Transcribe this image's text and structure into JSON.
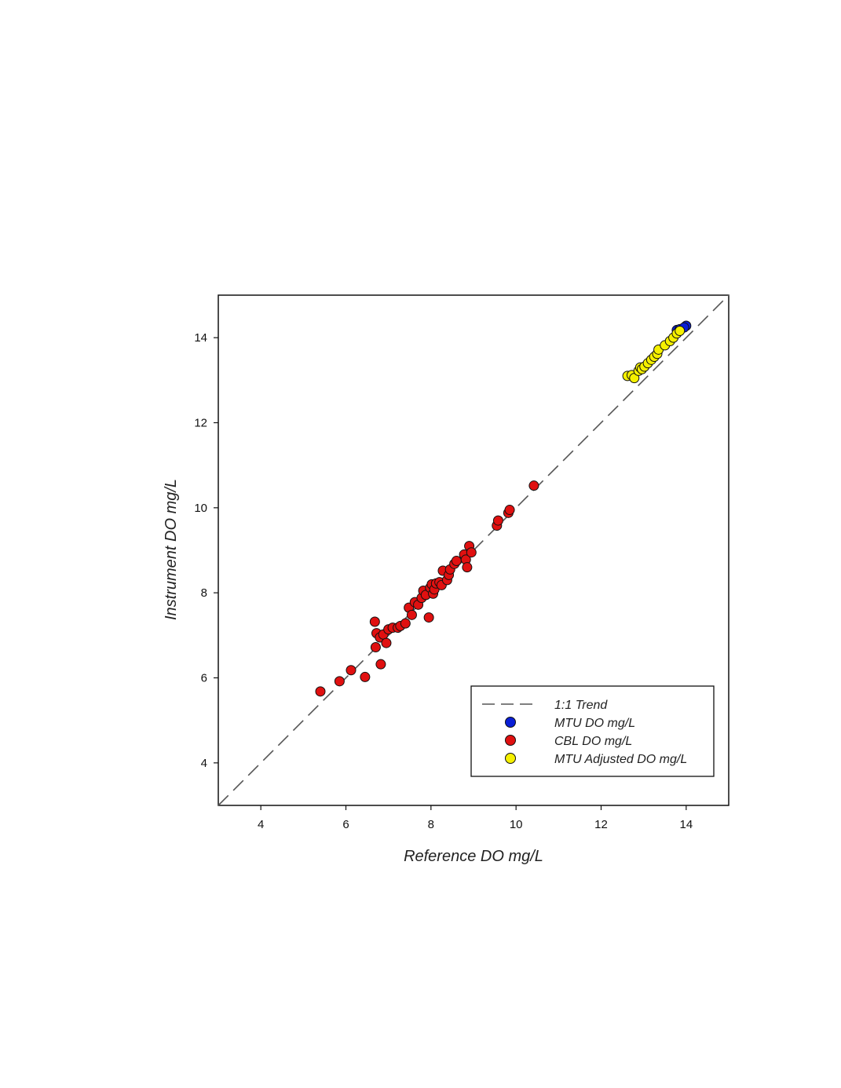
{
  "chart_data": {
    "type": "scatter",
    "title": "",
    "xlabel": "Reference DO mg/L",
    "ylabel": "Instrument DO mg/L",
    "xlim": [
      3,
      15
    ],
    "ylim": [
      3,
      15
    ],
    "xticks": [
      4,
      6,
      8,
      10,
      12,
      14
    ],
    "yticks": [
      4,
      6,
      8,
      10,
      12,
      14
    ],
    "grid": false,
    "legend_position": "bottom-right",
    "reference_line": {
      "name": "1:1 Trend",
      "slope": 1,
      "intercept": 0,
      "style": "dashed",
      "color": "#555555"
    },
    "series": [
      {
        "name": "MTU DO mg/L",
        "color": "#0a1fd6",
        "points": [
          [
            13.78,
            14.18
          ],
          [
            13.85,
            14.2
          ],
          [
            14.0,
            14.28
          ],
          [
            13.95,
            14.24
          ]
        ]
      },
      {
        "name": "CBL DO mg/L",
        "color": "#e01010",
        "points": [
          [
            5.4,
            5.68
          ],
          [
            5.85,
            5.92
          ],
          [
            6.12,
            6.18
          ],
          [
            6.45,
            6.02
          ],
          [
            6.68,
            7.32
          ],
          [
            6.7,
            6.72
          ],
          [
            6.72,
            7.05
          ],
          [
            6.8,
            6.95
          ],
          [
            6.82,
            6.32
          ],
          [
            6.88,
            7.02
          ],
          [
            6.95,
            6.82
          ],
          [
            7.0,
            7.14
          ],
          [
            7.1,
            7.18
          ],
          [
            7.22,
            7.18
          ],
          [
            7.28,
            7.22
          ],
          [
            7.4,
            7.28
          ],
          [
            7.48,
            7.65
          ],
          [
            7.55,
            7.48
          ],
          [
            7.62,
            7.78
          ],
          [
            7.7,
            7.72
          ],
          [
            7.78,
            7.88
          ],
          [
            7.82,
            8.05
          ],
          [
            7.88,
            7.95
          ],
          [
            7.95,
            7.42
          ],
          [
            7.98,
            8.12
          ],
          [
            8.02,
            8.2
          ],
          [
            8.05,
            7.98
          ],
          [
            8.08,
            8.08
          ],
          [
            8.12,
            8.22
          ],
          [
            8.2,
            8.25
          ],
          [
            8.25,
            8.18
          ],
          [
            8.28,
            8.52
          ],
          [
            8.38,
            8.3
          ],
          [
            8.42,
            8.42
          ],
          [
            8.45,
            8.55
          ],
          [
            8.55,
            8.68
          ],
          [
            8.6,
            8.75
          ],
          [
            8.78,
            8.9
          ],
          [
            8.82,
            8.78
          ],
          [
            8.85,
            8.6
          ],
          [
            8.9,
            9.1
          ],
          [
            8.95,
            8.95
          ],
          [
            9.55,
            9.58
          ],
          [
            9.58,
            9.7
          ],
          [
            9.82,
            9.88
          ],
          [
            9.85,
            9.95
          ],
          [
            10.42,
            10.52
          ]
        ]
      },
      {
        "name": "MTU Adjusted DO mg/L",
        "color": "#f5f000",
        "points": [
          [
            12.62,
            13.1
          ],
          [
            12.72,
            13.12
          ],
          [
            12.78,
            13.05
          ],
          [
            12.88,
            13.22
          ],
          [
            12.92,
            13.3
          ],
          [
            12.96,
            13.26
          ],
          [
            13.02,
            13.32
          ],
          [
            13.1,
            13.4
          ],
          [
            13.18,
            13.48
          ],
          [
            13.25,
            13.55
          ],
          [
            13.32,
            13.62
          ],
          [
            13.35,
            13.72
          ],
          [
            13.5,
            13.82
          ],
          [
            13.62,
            13.92
          ],
          [
            13.7,
            14.0
          ],
          [
            13.78,
            14.1
          ],
          [
            13.85,
            14.16
          ]
        ]
      }
    ]
  }
}
